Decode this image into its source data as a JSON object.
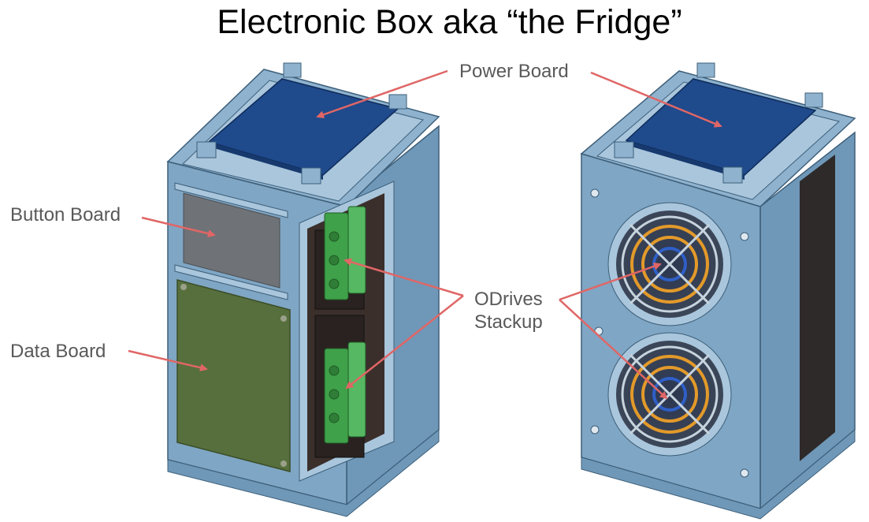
{
  "title": "Electronic Box aka “the Fridge”",
  "labels": {
    "power_board": "Power Board",
    "button_board": "Button Board",
    "data_board": "Data Board",
    "odrives_line1": "ODrives",
    "odrives_line2": "Stackup"
  },
  "colors": {
    "arrow": "#e06666",
    "frame": "#7fa6c4",
    "power_board": "#1f4a8c",
    "data_board": "#566f3c",
    "button_board": "#6f7276",
    "connector": "#3fa14a"
  }
}
